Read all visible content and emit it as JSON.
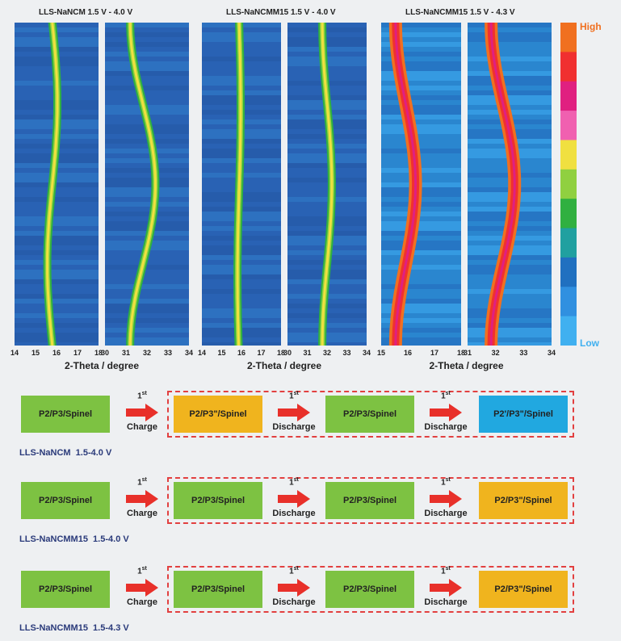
{
  "panels": [
    {
      "title": "LLS-NaNCM 1.5 V - 4.0 V",
      "xlabel": "2-Theta / degree",
      "left_ticks": [
        "14",
        "15",
        "16",
        "17",
        "18"
      ],
      "right_ticks": [
        "30",
        "31",
        "32",
        "33",
        "34"
      ]
    },
    {
      "title": "LLS-NaNCMM15 1.5 V - 4.0 V",
      "xlabel": "2-Theta / degree",
      "left_ticks": [
        "14",
        "15",
        "16",
        "17",
        "18"
      ],
      "right_ticks": [
        "30",
        "31",
        "32",
        "33",
        "34"
      ]
    },
    {
      "title": "LLS-NaNCMM15 1.5 V - 4.3 V",
      "xlabel": "2-Theta / degree",
      "left_ticks": [
        "15",
        "16",
        "17",
        "18"
      ],
      "right_ticks": [
        "31",
        "32",
        "33",
        "34"
      ]
    }
  ],
  "scale": {
    "high": "High",
    "low": "Low",
    "colors": [
      "#f07020",
      "#f03030",
      "#e02080",
      "#f060b0",
      "#f0e040",
      "#90d040",
      "#30b040",
      "#20a0a0",
      "#2070c0",
      "#3090e0",
      "#40b0f0"
    ]
  },
  "flow": {
    "rows": [
      {
        "label": "LLS-NaNCM  1.5-4.0 V",
        "start": "P2/P3/Spinel",
        "steps": [
          {
            "sup": "1",
            "sup2": "st",
            "label": "Charge",
            "result": "P2/P3\"/Spinel",
            "color": "#f0b41e"
          },
          {
            "sup": "1",
            "sup2": "st",
            "label": "Discharge",
            "result": "P2/P3/Spinel",
            "color": "#7dc242"
          },
          {
            "sup": "1",
            "sup2": "st",
            "label": "Discharge",
            "result": "P2'/P3\"/Spinel",
            "color": "#21a8e0"
          }
        ]
      },
      {
        "label": "LLS-NaNCMM15  1.5-4.0 V",
        "start": "P2/P3/Spinel",
        "steps": [
          {
            "sup": "1",
            "sup2": "st",
            "label": "Charge",
            "result": "P2/P3/Spinel",
            "color": "#7dc242"
          },
          {
            "sup": "1",
            "sup2": "st",
            "label": "Discharge",
            "result": "P2/P3/Spinel",
            "color": "#7dc242"
          },
          {
            "sup": "1",
            "sup2": "st",
            "label": "Discharge",
            "result": "P2/P3\"/Spinel",
            "color": "#f0b41e"
          }
        ]
      },
      {
        "label": "LLS-NaNCMM15  1.5-4.3 V",
        "start": "P2/P3/Spinel",
        "steps": [
          {
            "sup": "1",
            "sup2": "st",
            "label": "Charge",
            "result": "P2/P3/Spinel",
            "color": "#7dc242"
          },
          {
            "sup": "1",
            "sup2": "st",
            "label": "Discharge",
            "result": "P2/P3/Spinel",
            "color": "#7dc242"
          },
          {
            "sup": "1",
            "sup2": "st",
            "label": "Discharge",
            "result": "P2/P3\"/Spinel",
            "color": "#f0b41e"
          }
        ]
      }
    ],
    "start_color": "#7dc242",
    "arrow_color": "#e8302a"
  }
}
